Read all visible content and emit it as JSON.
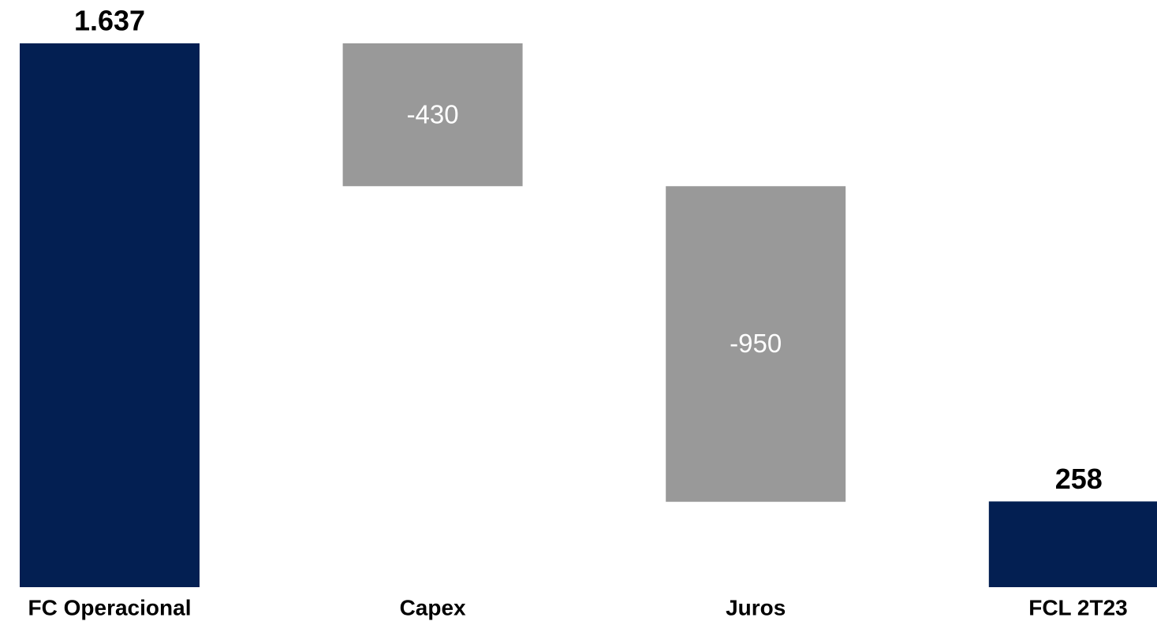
{
  "chart_data": {
    "type": "waterfall",
    "categories": [
      "FC Operacional",
      "Capex",
      "Juros",
      "FCL 2T23"
    ],
    "values": [
      1637,
      -430,
      -950,
      258
    ],
    "value_labels": [
      "1.637",
      "-430",
      "-950",
      "258"
    ],
    "measure": [
      "absolute",
      "relative",
      "relative",
      "absolute"
    ],
    "total_color": "#031f52",
    "delta_color": "#999999"
  }
}
